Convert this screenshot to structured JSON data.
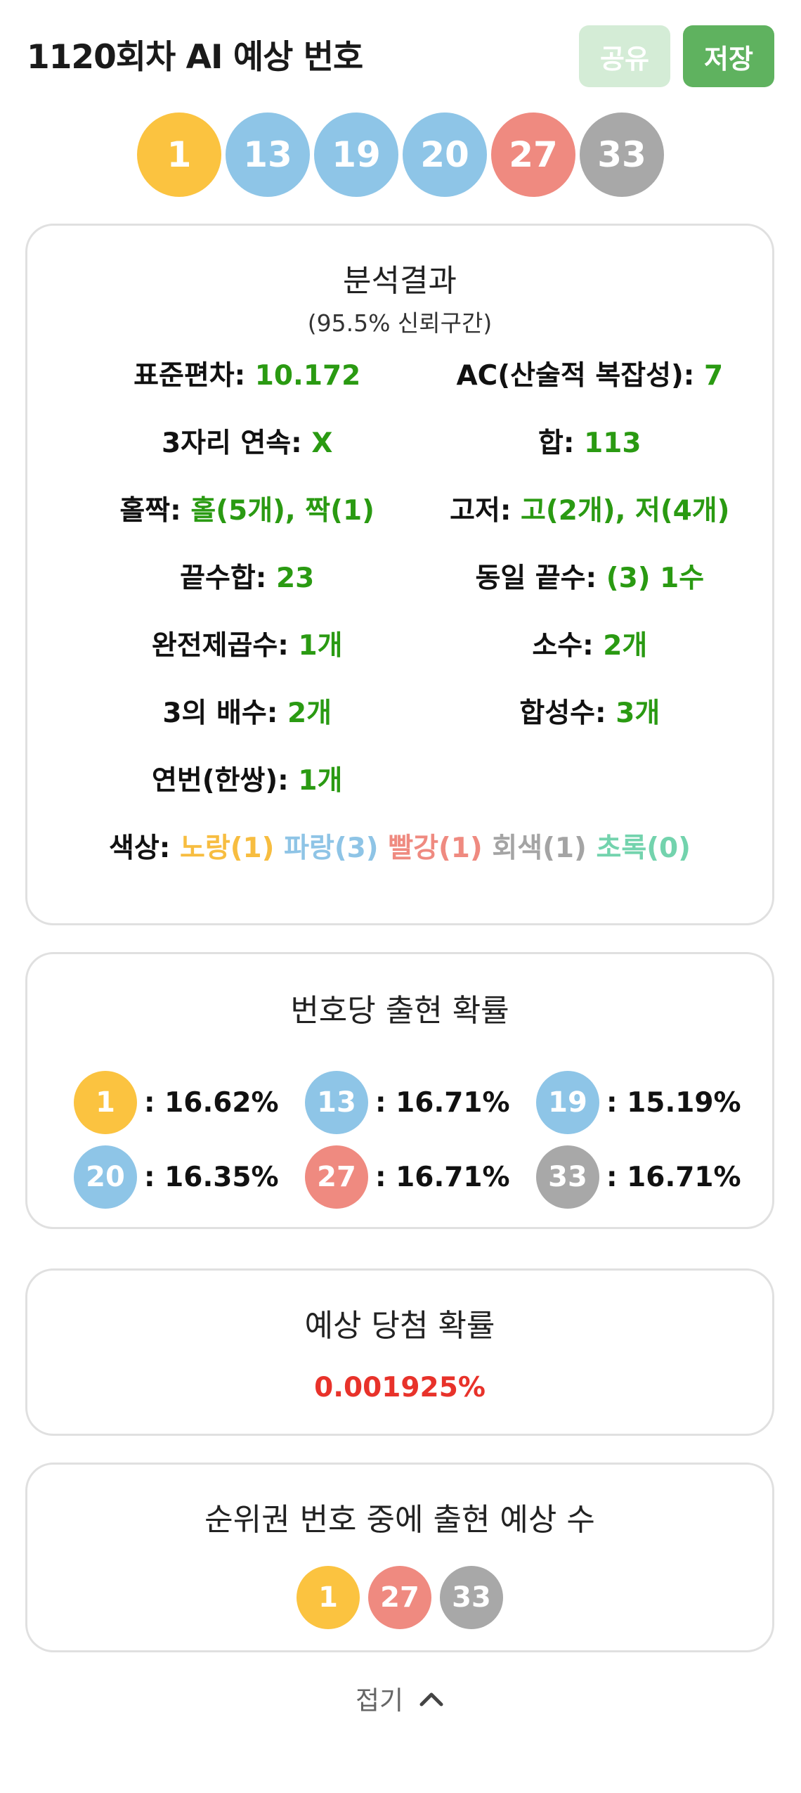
{
  "header": {
    "title": "1120회차 AI 예상 번호",
    "share_label": "공유",
    "save_label": "저장"
  },
  "colors": {
    "yellow": "#fbc340",
    "blue": "#8ec5e7",
    "red": "#ef8a80",
    "gray": "#a8a8a8",
    "green": "#73d3ad",
    "value_green": "#2a9a12",
    "probability_red": "#e8322a"
  },
  "numbers": [
    {
      "num": "1",
      "color": "#fbc340"
    },
    {
      "num": "13",
      "color": "#8ec5e7"
    },
    {
      "num": "19",
      "color": "#8ec5e7"
    },
    {
      "num": "20",
      "color": "#8ec5e7"
    },
    {
      "num": "27",
      "color": "#ef8a80"
    },
    {
      "num": "33",
      "color": "#a8a8a8"
    }
  ],
  "analysis": {
    "title": "분석결과",
    "subtitle": "(95.5% 신뢰구간)",
    "stats": [
      {
        "label": "표준편차:",
        "value": "10.172"
      },
      {
        "label": "AC(산술적 복잡성):",
        "value": "7"
      },
      {
        "label": "3자리 연속:",
        "value": "X"
      },
      {
        "label": "합:",
        "value": "113"
      },
      {
        "label": "홀짝:",
        "value": "홀(5개), 짝(1)"
      },
      {
        "label": "고저:",
        "value": "고(2개), 저(4개)"
      },
      {
        "label": "끝수합:",
        "value": "23"
      },
      {
        "label": "동일 끝수:",
        "value": "(3) 1수"
      },
      {
        "label": "완전제곱수:",
        "value": "1개"
      },
      {
        "label": "소수:",
        "value": "2개"
      },
      {
        "label": "3의 배수:",
        "value": "2개"
      },
      {
        "label": "합성수:",
        "value": "3개"
      },
      {
        "label": "연번(한쌍):",
        "value": "1개"
      }
    ],
    "colors_label": "색상:",
    "color_counts": {
      "yellow": "노랑(1)",
      "blue": "파랑(3)",
      "red": "빨강(1)",
      "gray": "회색(1)",
      "green": "초록(0)"
    }
  },
  "probability": {
    "title": "번호당 출현 확률",
    "items": [
      {
        "num": "1",
        "value": ": 16.62%",
        "color": "#fbc340"
      },
      {
        "num": "13",
        "value": ": 16.71%",
        "color": "#8ec5e7"
      },
      {
        "num": "19",
        "value": ": 15.19%",
        "color": "#8ec5e7"
      },
      {
        "num": "20",
        "value": ": 16.35%",
        "color": "#8ec5e7"
      },
      {
        "num": "27",
        "value": ": 16.71%",
        "color": "#ef8a80"
      },
      {
        "num": "33",
        "value": ": 16.71%",
        "color": "#a8a8a8"
      }
    ]
  },
  "win": {
    "title": "예상 당첨 확률",
    "value": "0.001925%"
  },
  "rank": {
    "title": "순위권 번호 중에 출현 예상 수",
    "balls": [
      {
        "num": "1",
        "color": "#fbc340"
      },
      {
        "num": "27",
        "color": "#ef8a80"
      },
      {
        "num": "33",
        "color": "#a8a8a8"
      }
    ]
  },
  "fold": {
    "label": "접기",
    "icon": "chevron-up-icon"
  }
}
